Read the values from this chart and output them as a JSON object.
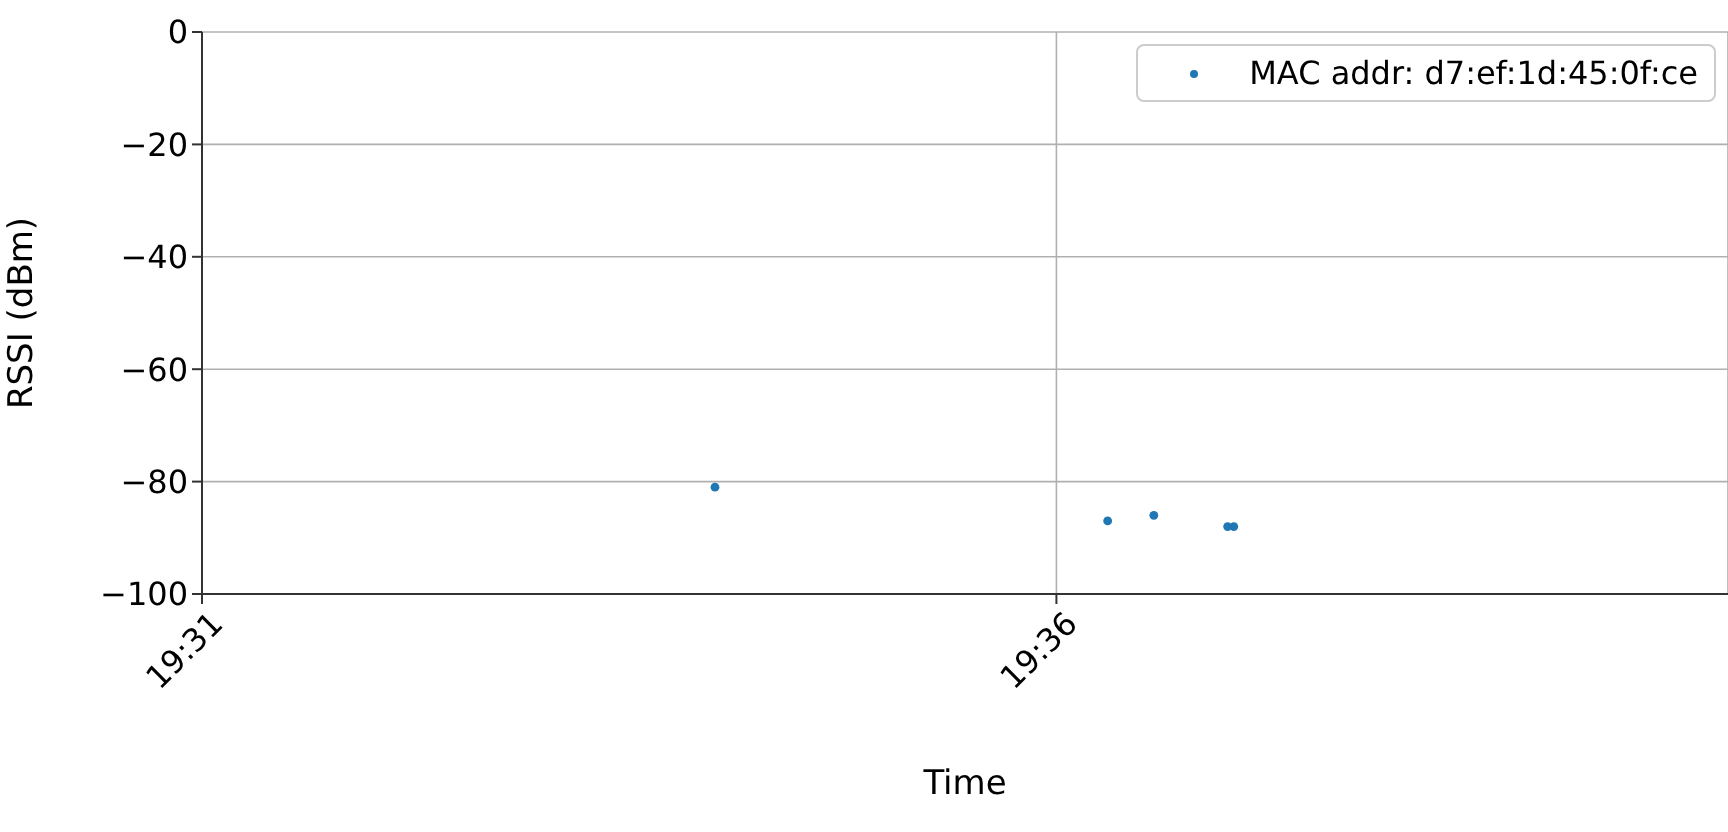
{
  "chart_data": {
    "type": "scatter",
    "xlabel": "Time",
    "ylabel": "RSSI (dBm)",
    "x": [
      19.5667,
      19.605,
      19.6095,
      19.6167,
      19.6173
    ],
    "series": [
      {
        "name": "MAC addr: d7:ef:1d:45:0f:ce",
        "color": "#1f77b4",
        "values": [
          -81,
          -87,
          -86,
          -88,
          -88
        ]
      }
    ],
    "xlim": [
      19.51667,
      19.6655
    ],
    "xticks": [
      {
        "value": 19.51667,
        "label": "19:31"
      },
      {
        "value": 19.6,
        "label": "19:36"
      }
    ],
    "ylim": [
      -100,
      0
    ],
    "yticks": [
      -100,
      -80,
      -60,
      -40,
      -20,
      0
    ],
    "grid": true,
    "legend": "top right",
    "marker": "circle"
  }
}
